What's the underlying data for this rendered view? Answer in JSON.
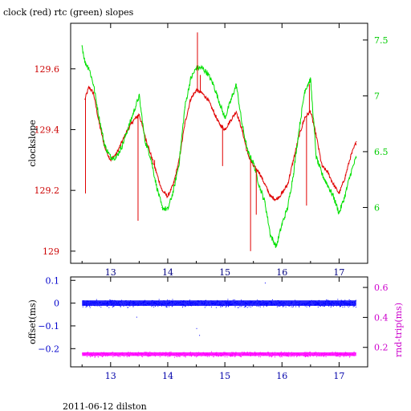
{
  "chart_data": [
    {
      "type": "line",
      "title": "clock (red) rtc (green) slopes",
      "ylabel": "clockslope",
      "xlabel": "",
      "xlim": [
        12.3,
        17.5
      ],
      "ylim": [
        128.96,
        129.75
      ],
      "y2lim": [
        5.5,
        7.65
      ],
      "grid": false,
      "x_ticks": [
        13,
        14,
        15,
        16,
        17
      ],
      "y_ticks": [
        129,
        129.2,
        129.4,
        129.6
      ],
      "y_tick_labels": [
        "129",
        "129.2",
        "129.4",
        "129.6"
      ],
      "y2_ticks": [
        6,
        6.5,
        7,
        7.5
      ],
      "y2_tick_labels": [
        "6",
        "6.5",
        "7",
        "7.5"
      ],
      "series": [
        {
          "color": "#e00000",
          "axis": "left",
          "x": [
            12.55,
            12.62,
            12.7,
            12.8,
            12.9,
            13.0,
            13.1,
            13.2,
            13.3,
            13.4,
            13.5,
            13.6,
            13.7,
            13.8,
            13.9,
            14.0,
            14.1,
            14.2,
            14.3,
            14.4,
            14.5,
            14.6,
            14.7,
            14.8,
            14.9,
            15.0,
            15.1,
            15.2,
            15.3,
            15.4,
            15.5,
            15.6,
            15.7,
            15.8,
            15.9,
            16.0,
            16.1,
            16.2,
            16.3,
            16.4,
            16.5,
            16.6,
            16.7,
            16.8,
            16.9,
            17.0,
            17.1,
            17.2,
            17.3
          ],
          "y": [
            129.5,
            129.54,
            129.52,
            129.42,
            129.34,
            129.3,
            129.32,
            129.36,
            129.4,
            129.43,
            129.45,
            129.38,
            129.32,
            129.26,
            129.2,
            129.18,
            129.22,
            129.3,
            129.42,
            129.5,
            129.53,
            129.52,
            129.5,
            129.46,
            129.42,
            129.4,
            129.43,
            129.46,
            129.4,
            129.32,
            129.28,
            129.26,
            129.22,
            129.18,
            129.17,
            129.19,
            129.22,
            129.3,
            129.38,
            129.44,
            129.46,
            129.38,
            129.28,
            129.26,
            129.22,
            129.19,
            129.24,
            129.31,
            129.36
          ]
        },
        {
          "color": "#00e000",
          "axis": "right",
          "x": [
            12.5,
            12.55,
            12.62,
            12.7,
            12.8,
            12.9,
            13.0,
            13.1,
            13.2,
            13.3,
            13.4,
            13.5,
            13.6,
            13.7,
            13.8,
            13.9,
            14.0,
            14.1,
            14.2,
            14.3,
            14.4,
            14.5,
            14.6,
            14.7,
            14.8,
            14.9,
            15.0,
            15.1,
            15.2,
            15.3,
            15.4,
            15.5,
            15.6,
            15.7,
            15.8,
            15.9,
            16.0,
            16.1,
            16.2,
            16.3,
            16.4,
            16.5,
            16.6,
            16.7,
            16.8,
            16.9,
            17.0,
            17.1,
            17.2,
            17.3
          ],
          "y": [
            7.45,
            7.3,
            7.25,
            7.1,
            6.8,
            6.55,
            6.45,
            6.45,
            6.55,
            6.7,
            6.85,
            7.0,
            6.6,
            6.45,
            6.2,
            6.0,
            5.98,
            6.15,
            6.4,
            6.9,
            7.15,
            7.25,
            7.25,
            7.2,
            7.1,
            6.95,
            6.8,
            6.95,
            7.1,
            6.75,
            6.5,
            6.4,
            6.2,
            6.05,
            5.75,
            5.65,
            5.85,
            6.0,
            6.3,
            6.7,
            7.05,
            7.15,
            6.45,
            6.3,
            6.2,
            6.1,
            5.95,
            6.1,
            6.3,
            6.45
          ]
        }
      ]
    },
    {
      "type": "scatter",
      "title": "",
      "xlabel": "",
      "ylabel": "offset(ms)",
      "y2label": "rnd-trip(ms)",
      "xlim": [
        12.3,
        17.5
      ],
      "ylim": [
        -0.28,
        0.115
      ],
      "y2lim": [
        0.07,
        0.67
      ],
      "grid": false,
      "x_ticks": [
        13,
        14,
        15,
        16,
        17
      ],
      "y_ticks": [
        -0.2,
        -0.1,
        0,
        0.1
      ],
      "y_tick_labels": [
        "−0.2",
        "−0.1",
        "0",
        "0.1"
      ],
      "y2_ticks": [
        0.2,
        0.4,
        0.6
      ],
      "y2_tick_labels": [
        "0.2",
        "0.4",
        "0.6"
      ],
      "series": [
        {
          "color": "#0000ff",
          "axis": "left",
          "x": [
            12.5,
            17.3
          ],
          "y": [
            0.0,
            0.0
          ],
          "band": 0.012
        },
        {
          "color": "#ff00ff",
          "axis": "right",
          "x": [
            12.5,
            17.3
          ],
          "y": [
            0.155,
            0.155
          ],
          "band": 0.012
        }
      ]
    }
  ],
  "footer": "2011-06-12 dilston"
}
